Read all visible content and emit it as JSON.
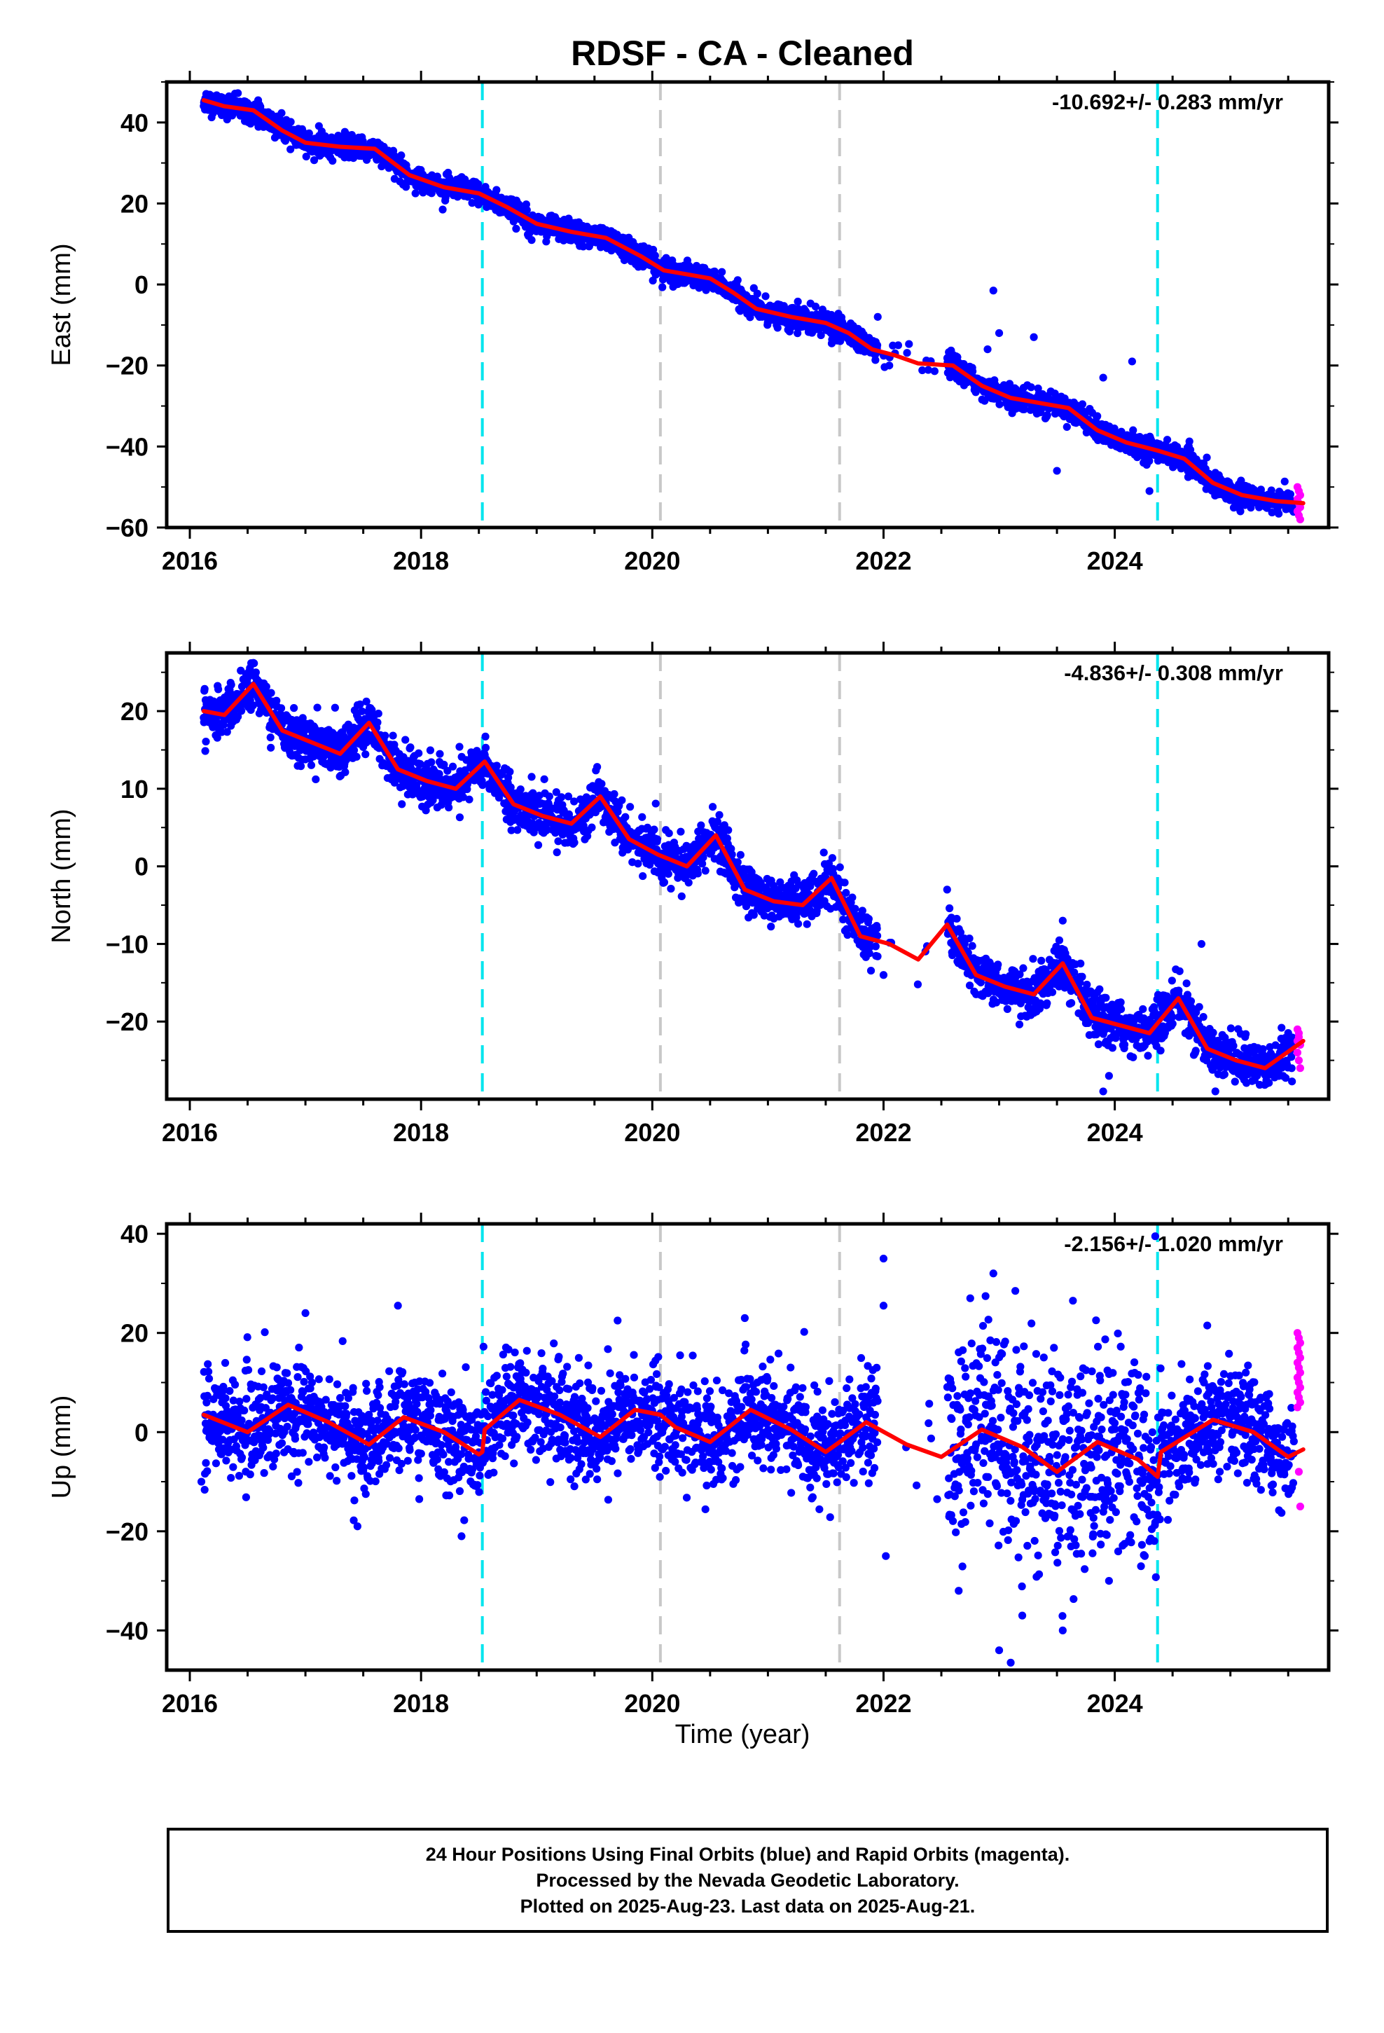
{
  "title": "RDSF  - CA - Cleaned",
  "xlabel": "Time (year)",
  "colors": {
    "final_orbits": "#0000ff",
    "rapid_orbits": "#ff00ff",
    "model": "#ff0000",
    "equipment_change": "#00e5ee",
    "other_event": "#c8c8c8"
  },
  "footer": {
    "line1": "24 Hour Positions Using Final Orbits (blue) and Rapid Orbits (magenta).",
    "line2": "Processed by the Nevada Geodetic Laboratory.",
    "line3": "Plotted on 2025-Aug-23. Last data on 2025-Aug-21."
  },
  "chart_data": [
    {
      "type": "scatter",
      "component": "east",
      "ylabel": "East (mm)",
      "rate_label": "-10.692+/- 0.283 mm/yr",
      "xlim": [
        2015.8,
        2025.85
      ],
      "ylim": [
        -60,
        50
      ],
      "xticks": [
        2016,
        2018,
        2020,
        2022,
        2024
      ],
      "yticks": [
        -60,
        -40,
        -20,
        0,
        20,
        40
      ],
      "event_lines": {
        "cyan": [
          2018.53,
          2024.37
        ],
        "gray": [
          2020.07,
          2021.62
        ]
      },
      "data_start": 2016.12,
      "data_end": 2025.63,
      "data_gap": [
        2021.95,
        2022.55
      ],
      "rapid_start": 2025.55,
      "scatter_mm": 1.4,
      "trend_rate": -10.692,
      "model": {
        "x": [
          2016.12,
          2016.3,
          2016.55,
          2016.8,
          2017.0,
          2017.3,
          2017.6,
          2017.9,
          2018.2,
          2018.5,
          2018.75,
          2019.0,
          2019.3,
          2019.6,
          2019.9,
          2020.1,
          2020.3,
          2020.5,
          2020.7,
          2020.9,
          2021.2,
          2021.5,
          2021.7,
          2021.9,
          2022.1,
          2022.3,
          2022.6,
          2022.85,
          2023.1,
          2023.4,
          2023.6,
          2023.85,
          2024.1,
          2024.37,
          2024.6,
          2024.85,
          2025.1,
          2025.4,
          2025.63
        ],
        "y": [
          45.5,
          44,
          43,
          38,
          35,
          34,
          33.5,
          27,
          24,
          22.5,
          19,
          15,
          13,
          11.5,
          7,
          3.5,
          2.5,
          1.5,
          -2,
          -6,
          -8,
          -9.5,
          -12,
          -16,
          -17.5,
          -19.5,
          -20,
          -25,
          -28,
          -29.5,
          -30.5,
          -36,
          -39,
          -41,
          -43,
          -49,
          -52,
          -53.5,
          -54
        ]
      },
      "outliers": [
        [
          2021.95,
          -8
        ],
        [
          2022.05,
          -20
        ],
        [
          2022.95,
          -1.5
        ],
        [
          2022.9,
          -16
        ],
        [
          2023.0,
          -12
        ],
        [
          2023.3,
          -13
        ],
        [
          2023.5,
          -46
        ],
        [
          2023.9,
          -23
        ],
        [
          2024.15,
          -19
        ],
        [
          2024.3,
          -51
        ]
      ],
      "rapid_values": [
        -50,
        -51,
        -52,
        -53,
        -54,
        -55,
        -56,
        -57,
        -58
      ]
    },
    {
      "type": "scatter",
      "component": "north",
      "ylabel": "North (mm)",
      "rate_label": "-4.836+/- 0.308 mm/yr",
      "xlim": [
        2015.8,
        2025.85
      ],
      "ylim": [
        -30,
        27.5
      ],
      "xticks": [
        2016,
        2018,
        2020,
        2022,
        2024
      ],
      "yticks": [
        -20,
        -10,
        0,
        10,
        20
      ],
      "event_lines": {
        "cyan": [
          2018.53,
          2024.37
        ],
        "gray": [
          2020.07,
          2021.62
        ]
      },
      "data_start": 2016.12,
      "data_end": 2025.63,
      "data_gap": [
        2021.95,
        2022.55
      ],
      "rapid_start": 2025.55,
      "scatter_mm": 1.5,
      "trend_rate": -4.836,
      "model": {
        "x": [
          2016.12,
          2016.3,
          2016.55,
          2016.8,
          2017.05,
          2017.3,
          2017.55,
          2017.8,
          2018.05,
          2018.3,
          2018.55,
          2018.8,
          2019.05,
          2019.3,
          2019.55,
          2019.8,
          2020.05,
          2020.3,
          2020.55,
          2020.8,
          2021.05,
          2021.3,
          2021.55,
          2021.8,
          2022.05,
          2022.3,
          2022.55,
          2022.8,
          2023.05,
          2023.3,
          2023.55,
          2023.8,
          2024.05,
          2024.3,
          2024.55,
          2024.8,
          2025.05,
          2025.3,
          2025.63
        ],
        "y": [
          20,
          19.5,
          23.5,
          17.5,
          16,
          14.5,
          18.5,
          12.5,
          11,
          10,
          13.5,
          8,
          6.5,
          5.5,
          9,
          3.5,
          1.5,
          0,
          4,
          -3,
          -4.5,
          -5,
          -1.5,
          -9,
          -10,
          -12,
          -7.5,
          -14,
          -15.5,
          -16.5,
          -12.5,
          -19.5,
          -20.5,
          -21.5,
          -17,
          -23.5,
          -25,
          -26,
          -22.5
        ]
      },
      "outliers": [
        [
          2022.0,
          -14
        ],
        [
          2023.95,
          -27
        ],
        [
          2023.9,
          -29
        ],
        [
          2024.75,
          -10
        ],
        [
          2023.55,
          -7
        ],
        [
          2022.55,
          -3
        ]
      ],
      "rapid_values": [
        -21,
        -22,
        -23,
        -24,
        -25,
        -26,
        -22.5,
        -21.5
      ]
    },
    {
      "type": "scatter",
      "component": "up",
      "ylabel": "Up (mm)",
      "rate_label": "-2.156+/- 1.020 mm/yr",
      "xlim": [
        2015.8,
        2025.85
      ],
      "ylim": [
        -48,
        42
      ],
      "xticks": [
        2016,
        2018,
        2020,
        2022,
        2024
      ],
      "yticks": [
        -40,
        -20,
        0,
        20,
        40
      ],
      "event_lines": {
        "cyan": [
          2018.53,
          2024.37
        ],
        "gray": [
          2020.07,
          2021.62
        ]
      },
      "data_start": 2016.12,
      "data_end": 2025.63,
      "data_gap": [
        2021.95,
        2022.55
      ],
      "rapid_start": 2025.55,
      "scatter_mm": 5,
      "scatter_mm_late": 11,
      "trend_rate": -2.156,
      "model": {
        "x": [
          2016.12,
          2016.5,
          2016.85,
          2017.2,
          2017.55,
          2017.85,
          2018.2,
          2018.5,
          2018.53,
          2018.55,
          2018.85,
          2019.2,
          2019.55,
          2019.85,
          2020.07,
          2020.2,
          2020.5,
          2020.85,
          2021.2,
          2021.5,
          2021.62,
          2021.85,
          2022.2,
          2022.5,
          2022.85,
          2023.2,
          2023.5,
          2023.85,
          2024.2,
          2024.37,
          2024.4,
          2024.85,
          2025.2,
          2025.5,
          2025.63
        ],
        "y": [
          3.5,
          0,
          5.5,
          2,
          -2.5,
          3,
          0,
          -4.5,
          -4,
          0.5,
          6.5,
          3.5,
          -1,
          4.5,
          3.5,
          1,
          -2,
          4.5,
          0.5,
          -4,
          -2,
          2,
          -2.5,
          -5,
          0.5,
          -3,
          -8,
          -2,
          -5.5,
          -9,
          -4,
          2.5,
          0,
          -5,
          -3.5
        ]
      },
      "outliers": [
        [
          2018.35,
          -21
        ],
        [
          2022.0,
          35
        ],
        [
          2022.0,
          25.5
        ],
        [
          2022.02,
          -25
        ],
        [
          2022.65,
          -32
        ],
        [
          2022.75,
          27
        ],
        [
          2022.95,
          32
        ],
        [
          2023.0,
          -44
        ],
        [
          2023.1,
          -46.5
        ],
        [
          2023.2,
          -37
        ],
        [
          2023.55,
          -40
        ],
        [
          2023.95,
          -30
        ],
        [
          2024.35,
          39.5
        ],
        [
          2024.3,
          -22
        ],
        [
          2016.1,
          -10
        ],
        [
          2017.45,
          -19
        ],
        [
          2019.7,
          22.5
        ],
        [
          2020.8,
          23
        ],
        [
          2017.8,
          25.5
        ],
        [
          2017.0,
          24
        ],
        [
          2024.8,
          21.5
        ]
      ],
      "rapid_values": [
        20,
        19,
        18,
        17,
        16,
        15,
        14,
        13,
        12,
        11,
        10,
        9,
        8,
        7,
        6,
        5,
        -8,
        -15
      ]
    }
  ]
}
